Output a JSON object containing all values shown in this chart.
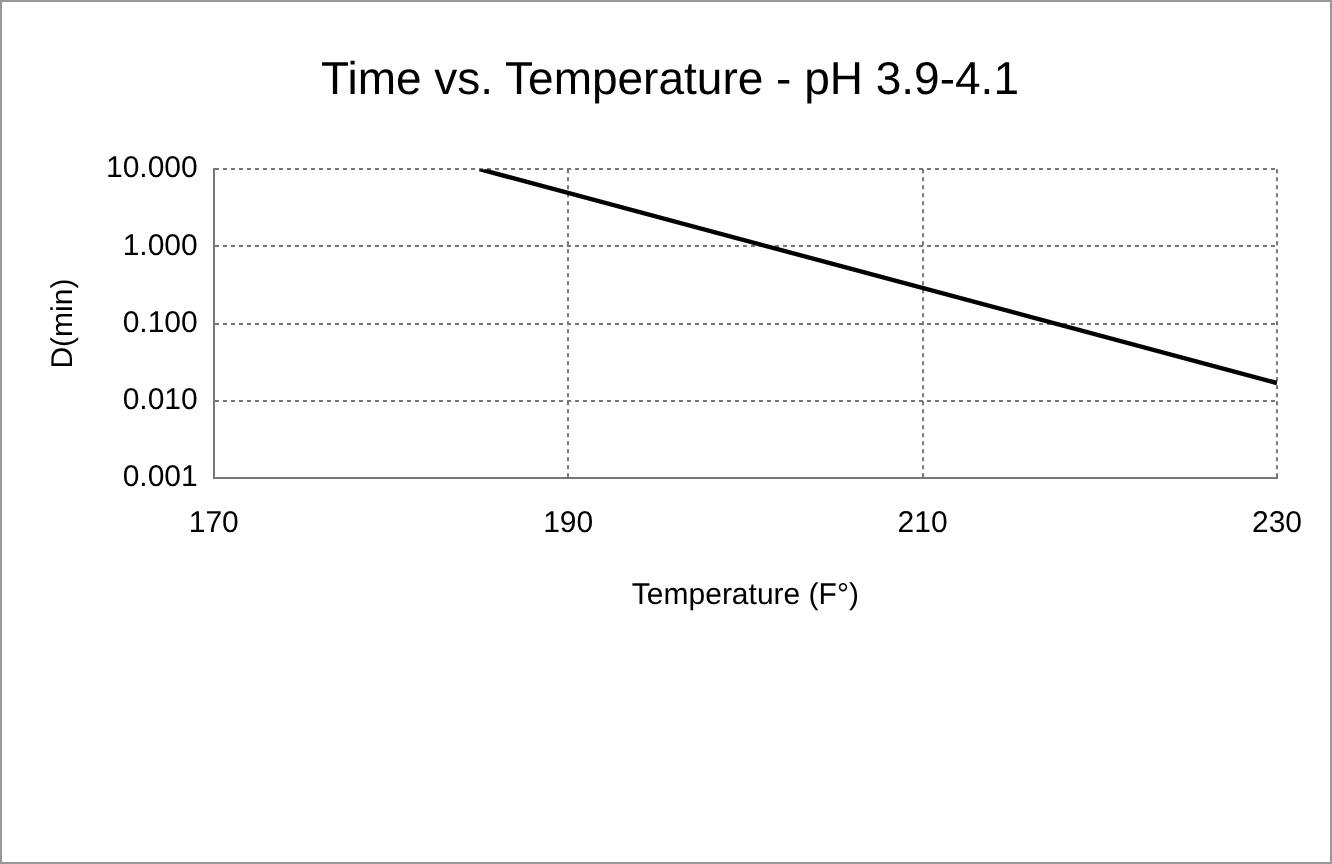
{
  "chart_data": {
    "type": "line",
    "title": "Time vs. Temperature - pH 3.9-4.1",
    "xlabel": "Temperature (F°)",
    "ylabel": "D(min)",
    "x": [
      185,
      230
    ],
    "series": [
      {
        "color": "#000000",
        "values": [
          10,
          0.017
        ]
      }
    ],
    "xlim": [
      170,
      230
    ],
    "xticks": [
      170,
      190,
      210,
      230
    ],
    "ylim": [
      0.001,
      10
    ],
    "yticks": [
      {
        "value": 0.001,
        "label": "0.001"
      },
      {
        "value": 0.01,
        "label": "0.010"
      },
      {
        "value": 0.1,
        "label": "0.100"
      },
      {
        "value": 1,
        "label": "1.000"
      },
      {
        "value": 10,
        "label": "10.000"
      }
    ],
    "log": "y",
    "grid": true,
    "legend": false,
    "marker": "none",
    "line_style": "solid"
  }
}
